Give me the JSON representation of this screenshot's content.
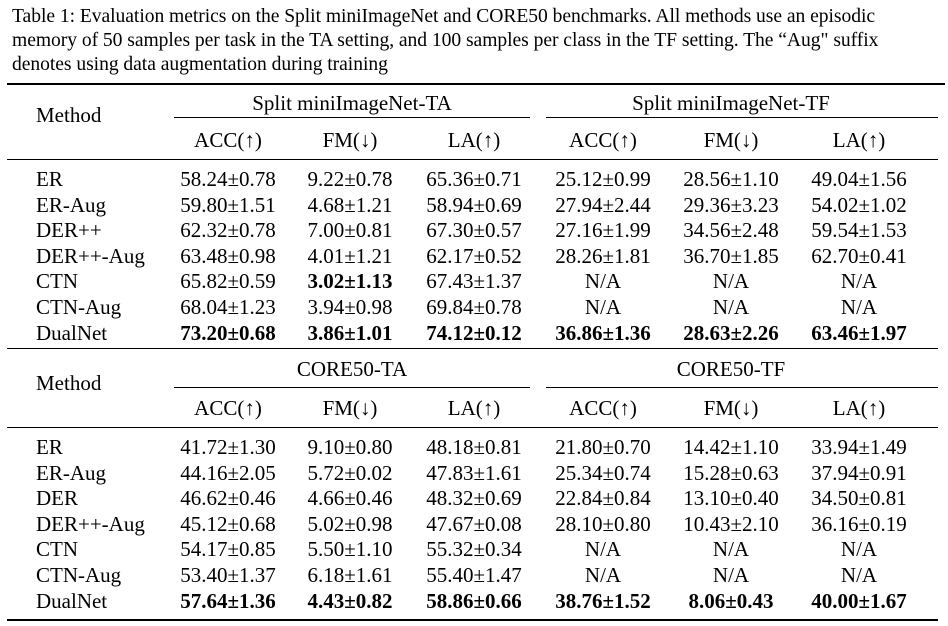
{
  "caption": "Table 1: Evaluation metrics on the Split miniImageNet and CORE50 benchmarks. All methods use an episodic memory of 50 samples per task in the TA setting, and 100 samples per class in the TF setting. The “Aug\" suffix denotes using data augmentation during training",
  "sections": [
    {
      "method_header": "Method",
      "group_ta": "Split miniImageNet-TA",
      "group_tf": "Split miniImageNet-TF",
      "metrics": [
        "ACC(↑)",
        "FM(↓)",
        "LA(↑)",
        "ACC(↑)",
        "FM(↓)",
        "LA(↑)"
      ],
      "rows": [
        {
          "method": "ER",
          "bold_method": false,
          "values": [
            "58.24±0.78",
            "9.22±0.78",
            "65.36±0.71",
            "25.12±0.99",
            "28.56±1.10",
            "49.04±1.56"
          ],
          "bold": [
            false,
            false,
            false,
            false,
            false,
            false
          ]
        },
        {
          "method": "ER-Aug",
          "bold_method": false,
          "values": [
            "59.80±1.51",
            "4.68±1.21",
            "58.94±0.69",
            "27.94±2.44",
            "29.36±3.23",
            "54.02±1.02"
          ],
          "bold": [
            false,
            false,
            false,
            false,
            false,
            false
          ]
        },
        {
          "method": "DER++",
          "bold_method": false,
          "values": [
            "62.32±0.78",
            "7.00±0.81",
            "67.30±0.57",
            "27.16±1.99",
            "34.56±2.48",
            "59.54±1.53"
          ],
          "bold": [
            false,
            false,
            false,
            false,
            false,
            false
          ]
        },
        {
          "method": "DER++-Aug",
          "bold_method": false,
          "values": [
            "63.48±0.98",
            "4.01±1.21",
            "62.17±0.52",
            "28.26±1.81",
            "36.70±1.85",
            "62.70±0.41"
          ],
          "bold": [
            false,
            false,
            false,
            false,
            false,
            false
          ]
        },
        {
          "method": "CTN",
          "bold_method": false,
          "values": [
            "65.82±0.59",
            "3.02±1.13",
            "67.43±1.37",
            "N/A",
            "N/A",
            "N/A"
          ],
          "bold": [
            false,
            true,
            false,
            false,
            false,
            false
          ]
        },
        {
          "method": "CTN-Aug",
          "bold_method": false,
          "values": [
            "68.04±1.23",
            "3.94±0.98",
            "69.84±0.78",
            "N/A",
            "N/A",
            "N/A"
          ],
          "bold": [
            false,
            false,
            false,
            false,
            false,
            false
          ]
        },
        {
          "method": "DualNet",
          "bold_method": false,
          "values": [
            "73.20±0.68",
            "3.86±1.01",
            "74.12±0.12",
            "36.86±1.36",
            "28.63±2.26",
            "63.46±1.97"
          ],
          "bold": [
            true,
            true,
            true,
            true,
            true,
            true
          ]
        }
      ]
    },
    {
      "method_header": "Method",
      "group_ta": "CORE50-TA",
      "group_tf": "CORE50-TF",
      "metrics": [
        "ACC(↑)",
        "FM(↓)",
        "LA(↑)",
        "ACC(↑)",
        "FM(↓)",
        "LA(↑)"
      ],
      "rows": [
        {
          "method": "ER",
          "bold_method": false,
          "values": [
            "41.72±1.30",
            "9.10±0.80",
            "48.18±0.81",
            "21.80±0.70",
            "14.42±1.10",
            "33.94±1.49"
          ],
          "bold": [
            false,
            false,
            false,
            false,
            false,
            false
          ]
        },
        {
          "method": "ER-Aug",
          "bold_method": false,
          "values": [
            "44.16±2.05",
            "5.72±0.02",
            "47.83±1.61",
            "25.34±0.74",
            "15.28±0.63",
            "37.94±0.91"
          ],
          "bold": [
            false,
            false,
            false,
            false,
            false,
            false
          ]
        },
        {
          "method": "DER",
          "bold_method": false,
          "values": [
            "46.62±0.46",
            "4.66±0.46",
            "48.32±0.69",
            "22.84±0.84",
            "13.10±0.40",
            "34.50±0.81"
          ],
          "bold": [
            false,
            false,
            false,
            false,
            false,
            false
          ]
        },
        {
          "method": "DER++-Aug",
          "bold_method": false,
          "values": [
            "45.12±0.68",
            "5.02±0.98",
            "47.67±0.08",
            "28.10±0.80",
            "10.43±2.10",
            "36.16±0.19"
          ],
          "bold": [
            false,
            false,
            false,
            false,
            false,
            false
          ]
        },
        {
          "method": "CTN",
          "bold_method": false,
          "values": [
            "54.17±0.85",
            "5.50±1.10",
            "55.32±0.34",
            "N/A",
            "N/A",
            "N/A"
          ],
          "bold": [
            false,
            false,
            false,
            false,
            false,
            false
          ]
        },
        {
          "method": "CTN-Aug",
          "bold_method": false,
          "values": [
            "53.40±1.37",
            "6.18±1.61",
            "55.40±1.47",
            "N/A",
            "N/A",
            "N/A"
          ],
          "bold": [
            false,
            false,
            false,
            false,
            false,
            false
          ]
        },
        {
          "method": "DualNet",
          "bold_method": false,
          "values": [
            "57.64±1.36",
            "4.43±0.82",
            "58.86±0.66",
            "38.76±1.52",
            "8.06±0.43",
            "40.00±1.67"
          ],
          "bold": [
            true,
            true,
            true,
            true,
            true,
            true
          ]
        }
      ]
    }
  ]
}
